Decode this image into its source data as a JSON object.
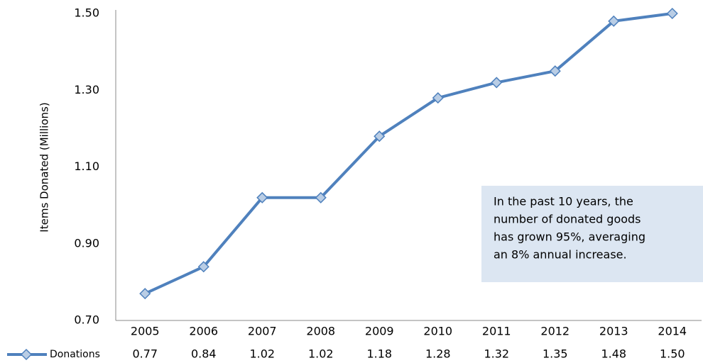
{
  "chart_data": {
    "type": "line",
    "y_label": "Items Donated (Millions)",
    "categories": [
      "2005",
      "2006",
      "2007",
      "2008",
      "2009",
      "2010",
      "2011",
      "2012",
      "2013",
      "2014"
    ],
    "series": [
      {
        "name": "Donations",
        "color": "#4f81bd",
        "marker_fill": "#b9cde5",
        "values": [
          0.77,
          0.84,
          1.02,
          1.02,
          1.18,
          1.28,
          1.32,
          1.35,
          1.48,
          1.5
        ],
        "value_labels": [
          "0.77",
          "0.84",
          "1.02",
          "1.02",
          "1.18",
          "1.28",
          "1.32",
          "1.35",
          "1.48",
          "1.50"
        ]
      }
    ],
    "ylim": [
      0.7,
      1.5
    ],
    "yticks": [
      {
        "value": 0.7,
        "label": "0.70"
      },
      {
        "value": 0.9,
        "label": "0.90"
      },
      {
        "value": 1.1,
        "label": "1.10"
      },
      {
        "value": 1.3,
        "label": "1.30"
      },
      {
        "value": 1.5,
        "label": "1.50"
      }
    ],
    "grid": false,
    "annotation": [
      "In the past 10 years, the",
      "number of donated goods",
      "has grown 95%, averaging",
      "an 8% annual increase."
    ]
  }
}
